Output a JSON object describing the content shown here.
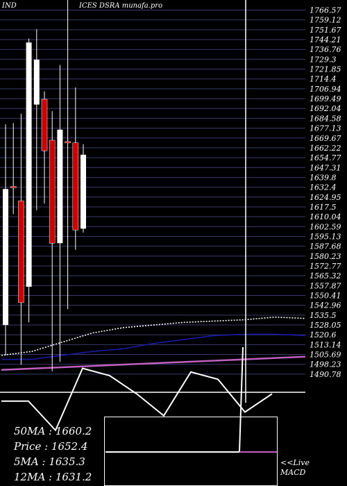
{
  "chart_data": {
    "type": "candlestick",
    "title_left": "IND",
    "title_right": "ICES DSRA munafa.pro",
    "ylim": [
      1486,
      1770
    ],
    "y_ticks": [
      "1766.57",
      "1759.12",
      "1751.67",
      "1744.21",
      "1736.76",
      "1729.3",
      "1721.85",
      "1714.4",
      "1706.94",
      "1699.49",
      "1692.04",
      "1684.58",
      "1677.13",
      "1669.67",
      "1662.22",
      "1654.77",
      "1647.31",
      "1639.8",
      "1632.4",
      "1624.95",
      "1617.5",
      "1610.04",
      "1602.59",
      "1595.13",
      "1587.68",
      "1580.23",
      "1572.77",
      "1565.32",
      "1557.87",
      "1550.41",
      "1542.96",
      "1535.5",
      "1528.05",
      "1520.6",
      "1513.14",
      "1505.69",
      "1498.23",
      "1490.78"
    ],
    "candles": [
      {
        "open": 1528,
        "close": 1631,
        "high": 1680,
        "low": 1505,
        "color": "white"
      },
      {
        "open": 1633,
        "close": 1632,
        "high": 1681,
        "low": 1612,
        "color": "red"
      },
      {
        "open": 1622,
        "close": 1545,
        "high": 1688,
        "low": 1498,
        "color": "red"
      },
      {
        "open": 1557,
        "close": 1742,
        "high": 1745,
        "low": 1530,
        "color": "white"
      },
      {
        "open": 1729,
        "close": 1695,
        "high": 1752,
        "low": 1615,
        "color": "white"
      },
      {
        "open": 1699,
        "close": 1660,
        "high": 1705,
        "low": 1620,
        "color": "red"
      },
      {
        "open": 1668,
        "close": 1590,
        "high": 1690,
        "low": 1493,
        "color": "red"
      },
      {
        "open": 1590,
        "close": 1676,
        "high": 1725,
        "low": 1500,
        "color": "white"
      },
      {
        "open": 1667,
        "close": 1666,
        "high": 1780,
        "low": 1540,
        "color": "red"
      },
      {
        "open": 1666,
        "close": 1600,
        "high": 1708,
        "low": 1585,
        "color": "red"
      },
      {
        "open": 1601,
        "close": 1657,
        "high": 1665,
        "low": 1598,
        "color": "white"
      }
    ],
    "series": [
      {
        "color": "#ffffff",
        "style": "dotted",
        "values": [
          1505,
          1508,
          1515,
          1522,
          1526,
          1528,
          1530,
          1531,
          1532,
          1534,
          1533
        ]
      },
      {
        "color": "#1a1aa8",
        "values": [
          1502,
          1502,
          1505,
          1508,
          1510,
          1514,
          1517,
          1520,
          1521,
          1521,
          1520
        ]
      },
      {
        "color": "#c060c0",
        "values": [
          1494,
          1495,
          1496,
          1497,
          1498,
          1499,
          1500,
          1501,
          1502,
          1503,
          1504
        ]
      }
    ],
    "oscillator": [
      0.45,
      0.45,
      0.05,
      0.9,
      0.8,
      0.55,
      0.25,
      0.85,
      0.75,
      0.3,
      0.55
    ],
    "macd": [
      0.92,
      0.92,
      0.92,
      0.92,
      0.92,
      0.92,
      0.92,
      0.92,
      0.92,
      0.92,
      0.92
    ]
  },
  "stats": {
    "ma50": "50MA : 1660.2",
    "price": "Price  : 1652.4",
    "ma5": "5MA : 1635.3",
    "ma12": "12MA : 1631.2",
    "live": "<<Live",
    "macd": "MACD"
  },
  "colors": {
    "grid": "#3a3a6e",
    "candle_red": "#cc0000",
    "candle_white": "#ffffff",
    "ma_white": "#ffffff",
    "ma_blue": "#1a1aa8",
    "ma_pink": "#c060c0"
  }
}
